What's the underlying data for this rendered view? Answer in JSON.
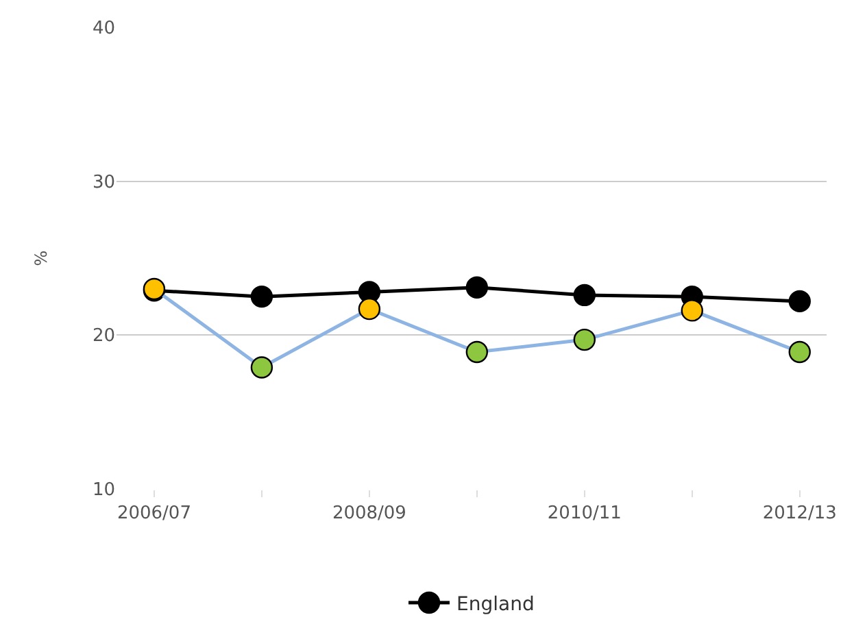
{
  "chart_data": {
    "type": "line",
    "ylabel": "%",
    "categories": [
      "2006/07",
      null,
      "2008/09",
      null,
      "2010/11",
      null,
      "2012/13"
    ],
    "series": [
      {
        "color": "#8db4e2",
        "colors": [
          "#ffc000",
          "#8dc63f",
          "#ffc000",
          "#8dc63f",
          "#8dc63f",
          "#ffc000",
          "#8dc63f"
        ],
        "values": [
          23.0,
          17.9,
          21.7,
          18.9,
          19.7,
          21.6,
          18.9
        ]
      },
      {
        "name": "England",
        "color": "#000000",
        "values": [
          22.9,
          22.5,
          22.8,
          23.1,
          22.6,
          22.5,
          22.2
        ]
      }
    ],
    "ylim": [
      10,
      40
    ],
    "yticks": [
      10,
      20,
      30,
      40
    ],
    "grid": "y",
    "legend": "bottom",
    "marker": "circle"
  }
}
